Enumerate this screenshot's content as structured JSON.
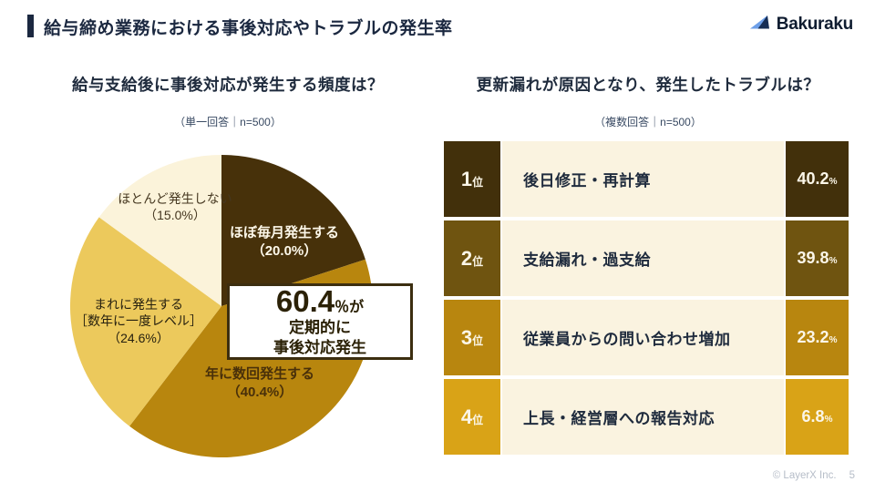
{
  "header": {
    "title": "給与締め業務における事後対応やトラブルの発生率",
    "logo_text": "Bakuraku"
  },
  "colors": {
    "title_navy": "#1b2840",
    "cream_bg": "#faf3e0",
    "pie": [
      "#47310a",
      "#b8860e",
      "#ecc95c",
      "#fbf3da"
    ],
    "rank_cells": [
      "#42300b",
      "#6f5410",
      "#b8860f",
      "#d9a317"
    ],
    "callout_border": "#3c2e10",
    "footer_gray": "#b6bdc8"
  },
  "left_panel": {
    "title": "給与支給後に事後対応が発生する頻度は？",
    "subtitle": "（単一回答｜n=500）",
    "slice_labels": {
      "monthly": {
        "l1": "ほぼ毎月発生する",
        "l2": "（20.0%）"
      },
      "fewtimes": {
        "l1": "年に数回発生する",
        "l2": "（40.4%）"
      },
      "rare": {
        "l1": "まれに発生する",
        "l2": "［数年に一度レベル］",
        "l3": "（24.6%）"
      },
      "none": {
        "l1": "ほとんど発生しない",
        "l2": "（15.0%）"
      }
    },
    "callout": {
      "big": "60.4",
      "unit": "％が",
      "line2": "定期的に",
      "line3": "事後対応発生"
    }
  },
  "right_panel": {
    "title": "更新漏れが原因となり、発生したトラブルは？",
    "subtitle": "（複数回答｜n=500）",
    "rows": [
      {
        "rank": "1",
        "rank_suffix": "位",
        "label": "後日修正・再計算",
        "value": "40.2",
        "unit": "%",
        "color": "#42300b"
      },
      {
        "rank": "2",
        "rank_suffix": "位",
        "label": "支給漏れ・過支給",
        "value": "39.8",
        "unit": "%",
        "color": "#6f5410"
      },
      {
        "rank": "3",
        "rank_suffix": "位",
        "label": "従業員からの問い合わせ増加",
        "value": "23.2",
        "unit": "%",
        "color": "#b8860f"
      },
      {
        "rank": "4",
        "rank_suffix": "位",
        "label": "上長・経営層への報告対応",
        "value": "6.8",
        "unit": "%",
        "color": "#d9a317"
      }
    ]
  },
  "footer": {
    "copyright": "© LayerX Inc.",
    "page": "5"
  },
  "chart_data": [
    {
      "type": "pie",
      "title": "給与支給後に事後対応が発生する頻度は？",
      "subtitle": "（単一回答｜n=500）",
      "labels": [
        "ほぼ毎月発生する",
        "年に数回発生する",
        "まれに発生する［数年に一度レベル］",
        "ほとんど発生しない"
      ],
      "values": [
        20.0,
        40.4,
        24.6,
        15.0
      ],
      "colors": [
        "#47310a",
        "#b8860e",
        "#ecc95c",
        "#fbf3da"
      ],
      "start_angle_deg": 0,
      "direction": "clockwise",
      "annotation": "60.4％が定期的に事後対応発生"
    },
    {
      "type": "bar",
      "title": "更新漏れが原因となり、発生したトラブルは？",
      "subtitle": "（複数回答｜n=500）",
      "categories": [
        "後日修正・再計算",
        "支給漏れ・過支給",
        "従業員からの問い合わせ増加",
        "上長・経営層への報告対応"
      ],
      "values": [
        40.2,
        39.8,
        23.2,
        6.8
      ],
      "unit": "%"
    }
  ]
}
